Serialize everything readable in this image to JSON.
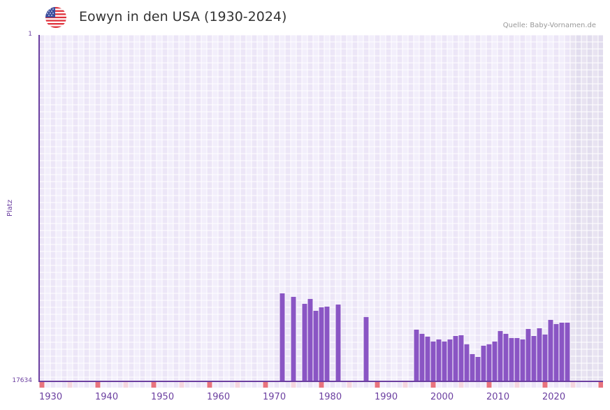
{
  "header": {
    "title": "Eowyn in den USA (1930-2024)",
    "source": "Quelle: Baby-Vornamen.de",
    "flag_icon": "us-flag-icon"
  },
  "axes": {
    "y_title": "Platz",
    "y_top_label": "1",
    "y_bottom_label": "17634",
    "x_ticks": [
      "1930",
      "1940",
      "1950",
      "1960",
      "1970",
      "1980",
      "1990",
      "2000",
      "2010",
      "2020"
    ]
  },
  "colors": {
    "bar": "#8a55c4",
    "axis": "#6b3fa0",
    "grid_a": "#ece6f7",
    "grid_b": "#f2eefb",
    "future_a": "#e2ddee",
    "future_b": "#e8e3f1",
    "marker_decade": "#e8737e",
    "marker_half": "#f5d6df"
  },
  "chart_data": {
    "type": "bar",
    "title": "Eowyn in den USA (1930-2024)",
    "xlabel": "",
    "ylabel": "Platz",
    "ylim": [
      17634,
      1
    ],
    "y_inverted": true,
    "x_range": [
      1930,
      2029
    ],
    "grid": true,
    "legend": null,
    "x": [
      1973,
      1975,
      1977,
      1978,
      1979,
      1980,
      1981,
      1983,
      1988,
      1997,
      1998,
      1999,
      2000,
      2001,
      2002,
      2003,
      2004,
      2005,
      2006,
      2007,
      2008,
      2009,
      2010,
      2011,
      2012,
      2013,
      2014,
      2015,
      2016,
      2017,
      2018,
      2019,
      2020,
      2021,
      2022,
      2023,
      2024
    ],
    "values": [
      13182,
      13360,
      13716,
      13467,
      14072,
      13894,
      13859,
      13752,
      14391,
      15033,
      15246,
      15389,
      15639,
      15532,
      15639,
      15532,
      15354,
      15318,
      15781,
      16280,
      16423,
      15852,
      15781,
      15639,
      15104,
      15246,
      15461,
      15461,
      15532,
      14997,
      15354,
      14962,
      15282,
      14534,
      14748,
      14677,
      14677
    ]
  }
}
